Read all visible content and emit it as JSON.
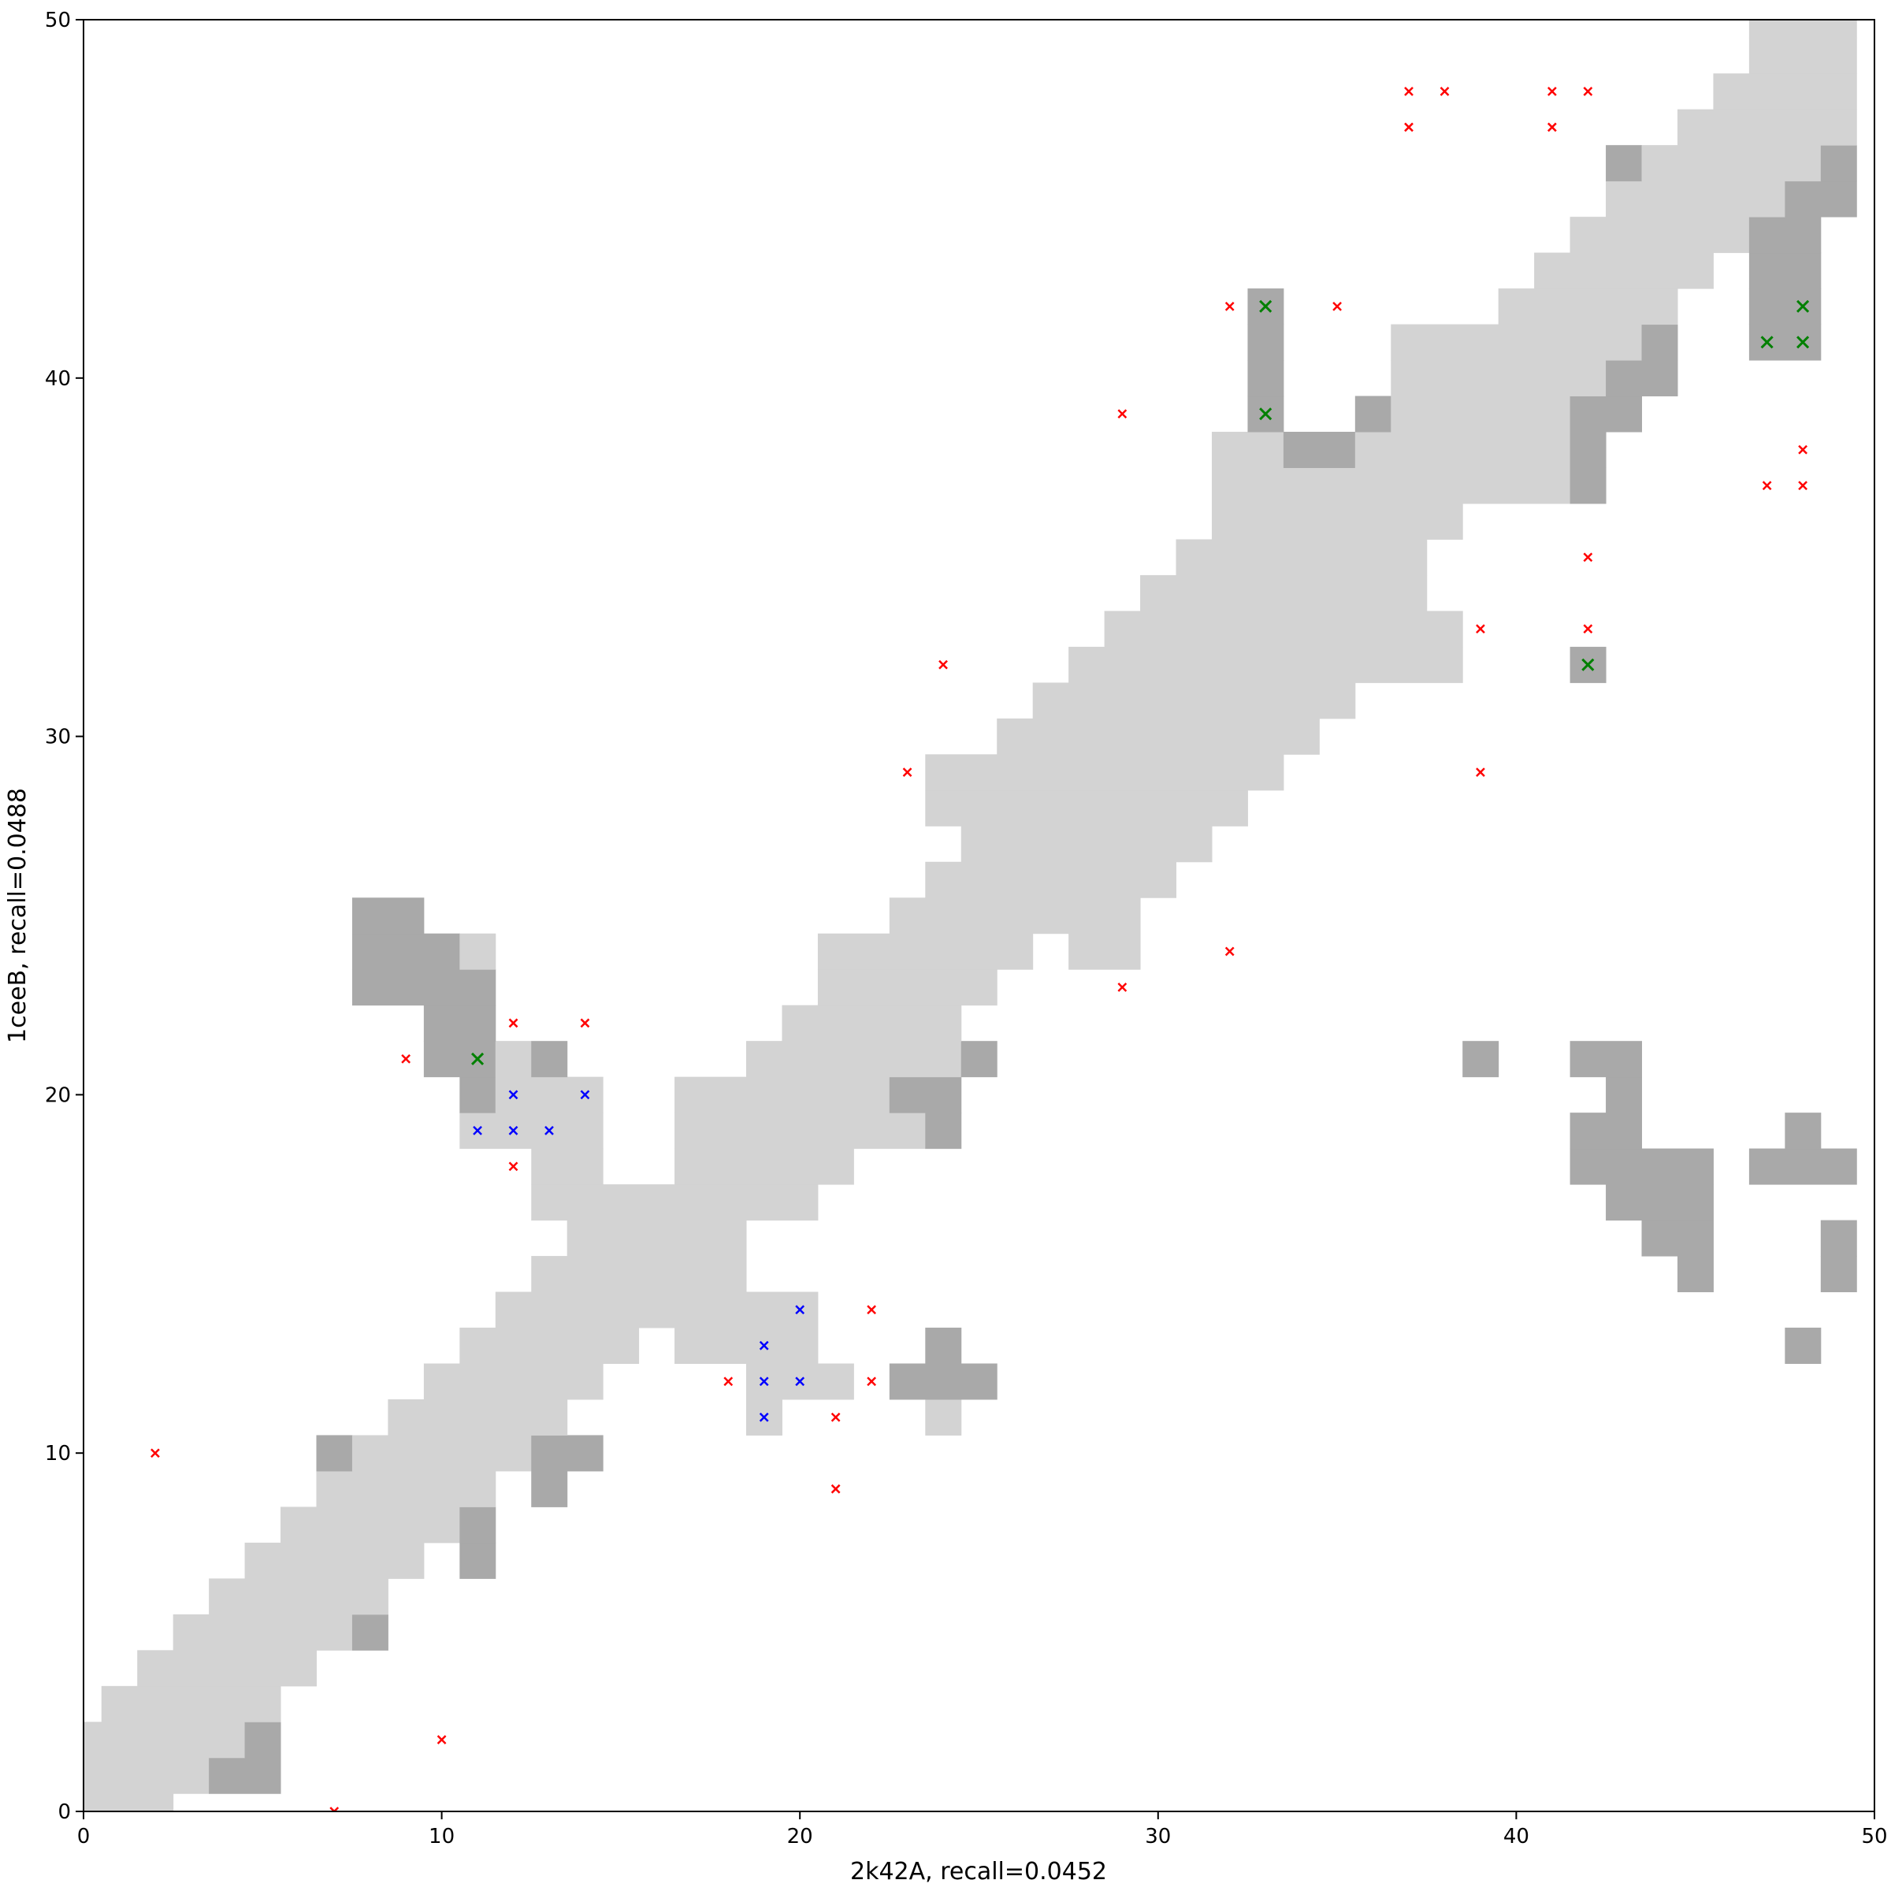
{
  "chart_data": {
    "type": "heatmap",
    "xlabel": "2k42A, recall=0.0452",
    "ylabel": "1ceeB, recall=0.0488",
    "xlim": [
      0,
      50
    ],
    "ylim": [
      0,
      50
    ],
    "xticks": [
      "0",
      "10",
      "20",
      "30",
      "40",
      "50"
    ],
    "yticks": [
      "0",
      "10",
      "20",
      "30",
      "40",
      "50"
    ],
    "grid": false,
    "colors": {
      "light": "#d3d3d3",
      "dark": "#a9a9a9",
      "red": "#ff0000",
      "blue": "#0000ff",
      "green": "#008000"
    },
    "cell_runs": [
      [
        0,
        0,
        2,
        "light"
      ],
      [
        1,
        0,
        3,
        "light"
      ],
      [
        1,
        4,
        5,
        "dark"
      ],
      [
        2,
        0,
        4,
        "light"
      ],
      [
        2,
        5,
        5,
        "dark"
      ],
      [
        3,
        1,
        5,
        "light"
      ],
      [
        4,
        2,
        6,
        "light"
      ],
      [
        5,
        3,
        7,
        "light"
      ],
      [
        5,
        8,
        8,
        "dark"
      ],
      [
        6,
        4,
        8,
        "light"
      ],
      [
        7,
        5,
        9,
        "light"
      ],
      [
        7,
        11,
        11,
        "dark"
      ],
      [
        8,
        6,
        10,
        "light"
      ],
      [
        8,
        11,
        11,
        "dark"
      ],
      [
        9,
        7,
        11,
        "light"
      ],
      [
        9,
        13,
        13,
        "dark"
      ],
      [
        10,
        7,
        7,
        "dark"
      ],
      [
        10,
        8,
        12,
        "light"
      ],
      [
        10,
        13,
        14,
        "dark"
      ],
      [
        11,
        9,
        13,
        "light"
      ],
      [
        11,
        19,
        19,
        "light"
      ],
      [
        11,
        24,
        24,
        "light"
      ],
      [
        12,
        10,
        14,
        "light"
      ],
      [
        12,
        19,
        21,
        "light"
      ],
      [
        12,
        23,
        25,
        "dark"
      ],
      [
        13,
        11,
        15,
        "light"
      ],
      [
        13,
        17,
        20,
        "light"
      ],
      [
        13,
        24,
        24,
        "dark"
      ],
      [
        13,
        48,
        48,
        "dark"
      ],
      [
        14,
        12,
        20,
        "light"
      ],
      [
        15,
        13,
        18,
        "light"
      ],
      [
        15,
        45,
        45,
        "dark"
      ],
      [
        15,
        49,
        49,
        "dark"
      ],
      [
        16,
        14,
        18,
        "light"
      ],
      [
        16,
        44,
        45,
        "dark"
      ],
      [
        16,
        49,
        49,
        "dark"
      ],
      [
        17,
        13,
        20,
        "light"
      ],
      [
        17,
        43,
        45,
        "dark"
      ],
      [
        18,
        13,
        14,
        "light"
      ],
      [
        18,
        17,
        21,
        "light"
      ],
      [
        18,
        42,
        45,
        "dark"
      ],
      [
        18,
        47,
        49,
        "dark"
      ],
      [
        19,
        11,
        14,
        "light"
      ],
      [
        19,
        17,
        23,
        "light"
      ],
      [
        19,
        24,
        24,
        "dark"
      ],
      [
        19,
        42,
        43,
        "dark"
      ],
      [
        19,
        48,
        48,
        "dark"
      ],
      [
        20,
        11,
        11,
        "dark"
      ],
      [
        20,
        12,
        14,
        "light"
      ],
      [
        20,
        17,
        22,
        "light"
      ],
      [
        20,
        23,
        24,
        "dark"
      ],
      [
        20,
        43,
        43,
        "dark"
      ],
      [
        21,
        10,
        11,
        "dark"
      ],
      [
        21,
        12,
        12,
        "light"
      ],
      [
        21,
        13,
        13,
        "dark"
      ],
      [
        21,
        19,
        24,
        "light"
      ],
      [
        21,
        25,
        25,
        "dark"
      ],
      [
        21,
        39,
        39,
        "dark"
      ],
      [
        21,
        42,
        43,
        "dark"
      ],
      [
        22,
        10,
        11,
        "dark"
      ],
      [
        22,
        20,
        24,
        "light"
      ],
      [
        23,
        8,
        11,
        "dark"
      ],
      [
        23,
        21,
        25,
        "light"
      ],
      [
        24,
        8,
        10,
        "dark"
      ],
      [
        24,
        11,
        11,
        "light"
      ],
      [
        24,
        21,
        26,
        "light"
      ],
      [
        24,
        28,
        29,
        "light"
      ],
      [
        25,
        8,
        9,
        "dark"
      ],
      [
        25,
        23,
        29,
        "light"
      ],
      [
        26,
        24,
        30,
        "light"
      ],
      [
        27,
        25,
        31,
        "light"
      ],
      [
        28,
        24,
        32,
        "light"
      ],
      [
        29,
        24,
        33,
        "light"
      ],
      [
        30,
        26,
        34,
        "light"
      ],
      [
        31,
        27,
        35,
        "light"
      ],
      [
        32,
        28,
        38,
        "light"
      ],
      [
        32,
        42,
        42,
        "dark"
      ],
      [
        33,
        29,
        38,
        "light"
      ],
      [
        34,
        30,
        37,
        "light"
      ],
      [
        35,
        31,
        37,
        "light"
      ],
      [
        36,
        32,
        38,
        "light"
      ],
      [
        37,
        32,
        41,
        "light"
      ],
      [
        37,
        42,
        42,
        "dark"
      ],
      [
        38,
        32,
        33,
        "light"
      ],
      [
        38,
        34,
        35,
        "dark"
      ],
      [
        38,
        36,
        41,
        "light"
      ],
      [
        38,
        42,
        42,
        "dark"
      ],
      [
        39,
        33,
        33,
        "dark"
      ],
      [
        39,
        36,
        36,
        "dark"
      ],
      [
        39,
        37,
        41,
        "light"
      ],
      [
        39,
        42,
        43,
        "dark"
      ],
      [
        40,
        33,
        33,
        "dark"
      ],
      [
        40,
        37,
        42,
        "light"
      ],
      [
        40,
        43,
        44,
        "dark"
      ],
      [
        41,
        33,
        33,
        "dark"
      ],
      [
        41,
        37,
        43,
        "light"
      ],
      [
        41,
        44,
        44,
        "dark"
      ],
      [
        41,
        47,
        48,
        "dark"
      ],
      [
        42,
        33,
        33,
        "dark"
      ],
      [
        42,
        40,
        44,
        "light"
      ],
      [
        42,
        47,
        48,
        "dark"
      ],
      [
        43,
        41,
        45,
        "light"
      ],
      [
        43,
        47,
        48,
        "dark"
      ],
      [
        44,
        42,
        46,
        "light"
      ],
      [
        44,
        47,
        48,
        "dark"
      ],
      [
        45,
        43,
        47,
        "light"
      ],
      [
        45,
        48,
        49,
        "dark"
      ],
      [
        46,
        43,
        43,
        "dark"
      ],
      [
        46,
        44,
        48,
        "light"
      ],
      [
        46,
        49,
        49,
        "dark"
      ],
      [
        47,
        45,
        49,
        "light"
      ],
      [
        48,
        46,
        49,
        "light"
      ],
      [
        49,
        47,
        49,
        "light"
      ],
      [
        50,
        47,
        49,
        "light"
      ]
    ],
    "markers": {
      "red": [
        [
          2,
          10
        ],
        [
          10,
          2
        ],
        [
          7,
          0
        ],
        [
          9,
          21
        ],
        [
          12,
          22
        ],
        [
          14,
          22
        ],
        [
          12,
          18
        ],
        [
          18,
          12
        ],
        [
          22,
          14
        ],
        [
          22,
          12
        ],
        [
          21,
          11
        ],
        [
          21,
          9
        ],
        [
          23,
          29
        ],
        [
          24,
          32
        ],
        [
          29,
          39
        ],
        [
          29,
          23
        ],
        [
          32,
          24
        ],
        [
          32,
          42
        ],
        [
          35,
          42
        ],
        [
          37,
          48
        ],
        [
          38,
          48
        ],
        [
          37,
          47
        ],
        [
          41,
          48
        ],
        [
          42,
          48
        ],
        [
          41,
          47
        ],
        [
          48,
          38
        ],
        [
          47,
          37
        ],
        [
          48,
          37
        ],
        [
          42,
          35
        ],
        [
          39,
          33
        ],
        [
          42,
          33
        ],
        [
          39,
          29
        ]
      ],
      "blue": [
        [
          11,
          19
        ],
        [
          12,
          20
        ],
        [
          12,
          19
        ],
        [
          13,
          19
        ],
        [
          14,
          20
        ],
        [
          19,
          13
        ],
        [
          19,
          12
        ],
        [
          20,
          14
        ],
        [
          20,
          12
        ],
        [
          19,
          11
        ]
      ],
      "green": [
        [
          11,
          21
        ],
        [
          33,
          42
        ],
        [
          33,
          39
        ],
        [
          48,
          42
        ],
        [
          47,
          41
        ],
        [
          48,
          41
        ],
        [
          42,
          32
        ]
      ]
    }
  }
}
